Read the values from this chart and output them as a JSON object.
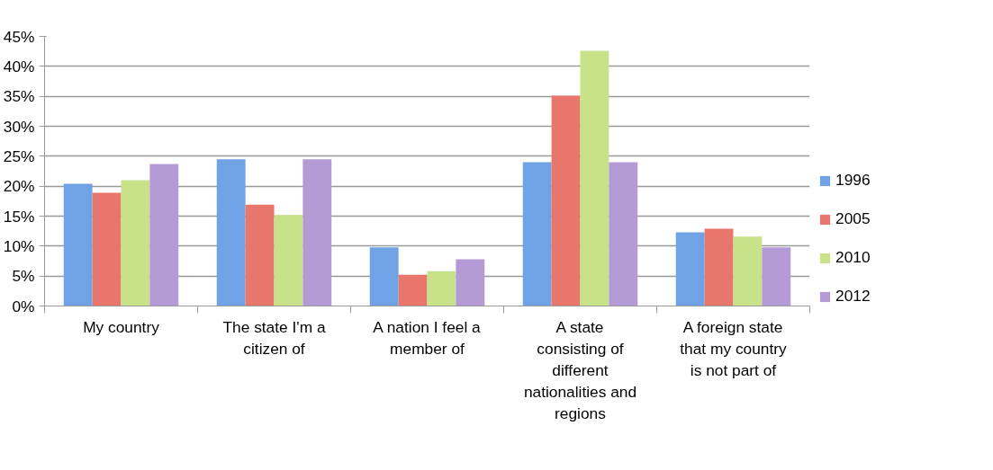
{
  "chart_data": {
    "type": "bar",
    "categories": [
      "My country",
      "The state I'm a citizen of",
      "A nation I feel a member of",
      "A state consisting of different nationalities and regions",
      "A foreign state that my country is not part of"
    ],
    "series": [
      {
        "name": "1996",
        "color": "#6fa3e6",
        "values": [
          20.4,
          24.5,
          9.8,
          24.0,
          12.3
        ]
      },
      {
        "name": "2005",
        "color": "#e8766c",
        "values": [
          18.9,
          16.9,
          5.2,
          35.1,
          12.9
        ]
      },
      {
        "name": "2010",
        "color": "#c8e28a",
        "values": [
          21.0,
          15.2,
          5.8,
          42.6,
          11.6
        ]
      },
      {
        "name": "2012",
        "color": "#b59bd6",
        "values": [
          23.7,
          24.5,
          7.8,
          24.0,
          9.8
        ]
      }
    ],
    "ylim": [
      0,
      45
    ],
    "yticks": [
      {
        "value": 0,
        "label": "0%"
      },
      {
        "value": 5,
        "label": "5%"
      },
      {
        "value": 10,
        "label": "10%"
      },
      {
        "value": 15,
        "label": "15%"
      },
      {
        "value": 20,
        "label": "20%"
      },
      {
        "value": 25,
        "label": "25%"
      },
      {
        "value": 30,
        "label": "30%"
      },
      {
        "value": 35,
        "label": "35%"
      },
      {
        "value": 40,
        "label": "40%"
      },
      {
        "value": 45,
        "label": "45%"
      }
    ],
    "grid": "y",
    "legend": "right"
  }
}
